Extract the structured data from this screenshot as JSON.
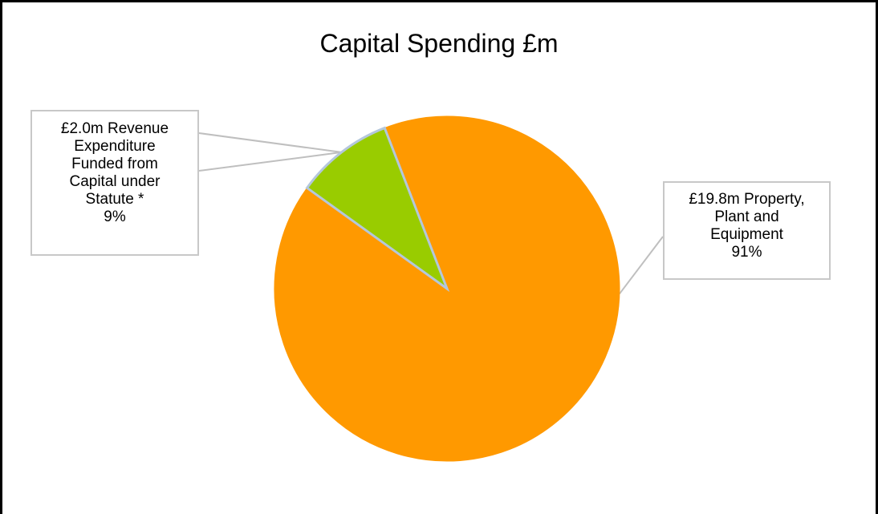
{
  "chart_data": {
    "type": "pie",
    "title": "Capital Spending £m",
    "slices": [
      {
        "label_lines": [
          "£19.8m Property,",
          "Plant and",
          "Equipment"
        ],
        "value": 19.8,
        "percent_label": "91%",
        "color": "#ff9900"
      },
      {
        "label_lines": [
          "£2.0m Revenue",
          "Expenditure",
          "Funded from",
          "Capital under",
          "Statute *"
        ],
        "value": 2.0,
        "percent_label": "9%",
        "color": "#99cc00"
      }
    ],
    "slice_border_color": "#b4c7dc",
    "leader_line_color": "#bfbfbf"
  }
}
